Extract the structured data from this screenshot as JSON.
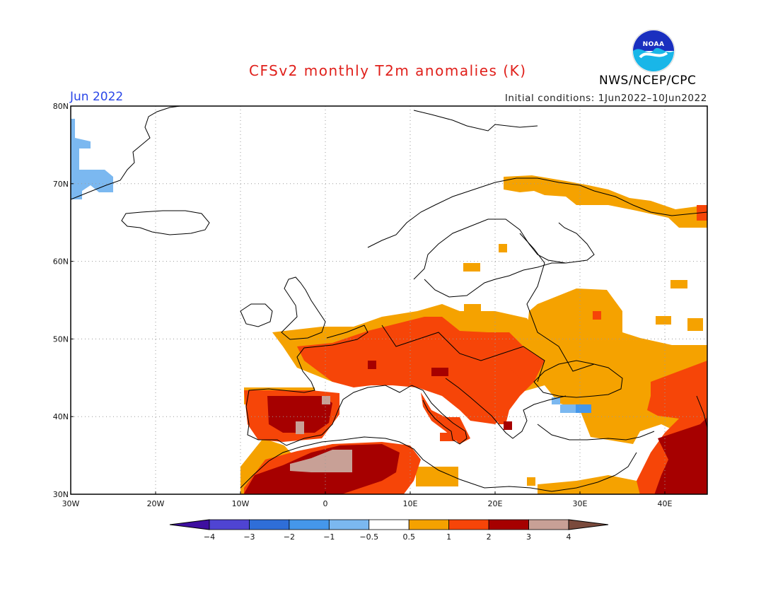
{
  "title": "CFSv2 monthly T2m anomalies (K)",
  "month": "Jun 2022",
  "initial_conditions": "Initial conditions: 1Jun2022–10Jun2022",
  "agency": "NWS/NCEP/CPC",
  "logo_text": "NOAA",
  "logo_icon": "noaa-logo",
  "map": {
    "lon_range": [
      -30,
      45
    ],
    "lat_range": [
      30,
      80
    ],
    "lat_labels": [
      "80N",
      "70N",
      "60N",
      "50N",
      "40N",
      "30N"
    ],
    "lon_labels": [
      "30W",
      "20W",
      "10W",
      "0",
      "10E",
      "20E",
      "30E",
      "40E"
    ],
    "gridlines": "dotted"
  },
  "colorbar": {
    "labels": [
      "−4",
      "−3",
      "−2",
      "−1",
      "−0.5",
      "0.5",
      "1",
      "2",
      "3",
      "4"
    ],
    "colors": [
      "#3e0fa0",
      "#4f44d2",
      "#2f6ed8",
      "#4597ea",
      "#7bb8f0",
      "#ffffff",
      "#f5a200",
      "#f64508",
      "#a60000",
      "#c8a096",
      "#7a4a3c"
    ]
  },
  "anomaly_regions": [
    {
      "name": "Iberia",
      "level": "2 to 3 K"
    },
    {
      "name": "Northwest Africa",
      "level": "2 to 4 K"
    },
    {
      "name": "France and Central Europe",
      "level": "1 to 2 K"
    },
    {
      "name": "Balkans and Italy",
      "level": "1 to 3 K"
    },
    {
      "name": "Eastern Europe",
      "level": "0.5 to 1 K"
    },
    {
      "name": "Scandinavia north coast",
      "level": "0.5 to 1 K"
    },
    {
      "name": "East Greenland",
      "level": "−1 to −0.5 K"
    },
    {
      "name": "Northwest Turkey",
      "level": "−1 to −0.5 K"
    },
    {
      "name": "Anatolia and Caucasus",
      "level": "1 to 2 K"
    }
  ]
}
